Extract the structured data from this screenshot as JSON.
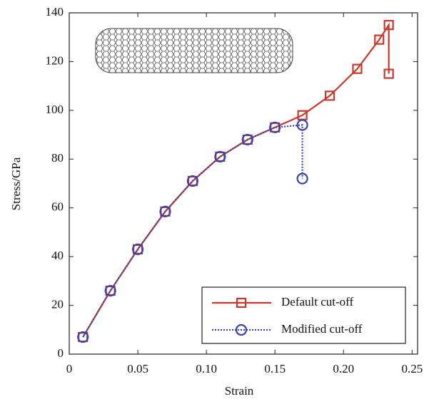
{
  "chart_data": {
    "type": "line",
    "x_label": "Strain",
    "y_label": "Stress/GPa",
    "xlim": [
      0,
      0.254
    ],
    "ylim": [
      0,
      140
    ],
    "xticks": [
      0,
      0.05,
      {
        "value": 0.1,
        "label": "0.10"
      },
      0.15,
      {
        "value": 0.2,
        "label": "0.20"
      },
      0.25
    ],
    "yticks": [
      0,
      20,
      40,
      60,
      80,
      100,
      120,
      140
    ],
    "legend": "lower right",
    "series": [
      {
        "name": "Default cut-off",
        "color": "#c8382b",
        "marker": "square",
        "linestyle": "solid",
        "x": [
          0.01,
          0.03,
          0.05,
          0.07,
          0.09,
          0.11,
          0.13,
          0.15,
          0.17,
          0.19,
          0.21,
          0.226,
          0.233,
          0.233
        ],
        "values": [
          7,
          26,
          43,
          58.5,
          71,
          81,
          88,
          93,
          98,
          106,
          117,
          129,
          135,
          115
        ]
      },
      {
        "name": "Modified cut-off",
        "color": "#3a43a8",
        "marker": "circle",
        "linestyle": "dotted",
        "x": [
          0.01,
          0.03,
          0.05,
          0.07,
          0.09,
          0.11,
          0.13,
          0.15,
          0.17,
          0.17
        ],
        "values": [
          7,
          26,
          43,
          58.5,
          71,
          81,
          88,
          93,
          94,
          72
        ]
      }
    ]
  }
}
